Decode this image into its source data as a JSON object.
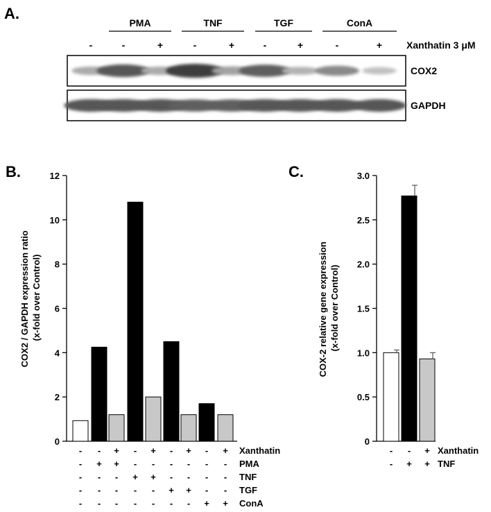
{
  "panel_a": {
    "label": "A.",
    "groups": [
      "PMA",
      "TNF",
      "TGF",
      "ConA"
    ],
    "treatment_label": "Xanthatin 3 μM",
    "treatment_signs": [
      "-",
      "-",
      "+",
      "-",
      "+",
      "-",
      "+",
      "-",
      "+"
    ],
    "blots": [
      {
        "name": "COX2",
        "intensities": [
          0.35,
          0.85,
          0.35,
          1.0,
          0.4,
          0.8,
          0.3,
          0.55,
          0.22
        ]
      },
      {
        "name": "GAPDH",
        "intensities": [
          0.85,
          0.85,
          0.85,
          0.8,
          0.8,
          0.85,
          0.85,
          0.85,
          0.85
        ]
      }
    ]
  },
  "chart_data": [
    {
      "panel_label": "B.",
      "type": "bar",
      "ylabel": [
        "COX2 / GAPDH expression ratio",
        "(x-fold over Control)"
      ],
      "ylim": [
        0,
        12
      ],
      "yticks": [
        "0",
        "2",
        "4",
        "6",
        "8",
        "10",
        "12"
      ],
      "values": [
        0.93,
        4.25,
        1.2,
        10.8,
        2.0,
        4.5,
        1.2,
        1.7,
        1.2
      ],
      "bar_colors": [
        "#ffffff",
        "#000000",
        "#c8c8c8",
        "#000000",
        "#c8c8c8",
        "#000000",
        "#c8c8c8",
        "#000000",
        "#c8c8c8"
      ],
      "condition_rows": [
        {
          "label": "Xanthatin",
          "signs": [
            "-",
            "-",
            "+",
            "-",
            "+",
            "-",
            "+",
            "-",
            "+"
          ]
        },
        {
          "label": "PMA",
          "signs": [
            "-",
            "+",
            "+",
            "-",
            "-",
            "-",
            "-",
            "-",
            "-"
          ]
        },
        {
          "label": "TNF",
          "signs": [
            "-",
            "-",
            "-",
            "+",
            "+",
            "-",
            "-",
            "-",
            "-"
          ]
        },
        {
          "label": "TGF",
          "signs": [
            "-",
            "-",
            "-",
            "-",
            "-",
            "+",
            "+",
            "-",
            "-"
          ]
        },
        {
          "label": "ConA",
          "signs": [
            "-",
            "-",
            "-",
            "-",
            "-",
            "-",
            "-",
            "+",
            "+"
          ]
        }
      ],
      "grid": false
    },
    {
      "panel_label": "C.",
      "type": "bar",
      "ylabel": [
        "COX-2 relative gene expression",
        "(x-fold over Control)"
      ],
      "ylim": [
        0,
        3.0
      ],
      "yticks": [
        "0",
        "0.5",
        "1.0",
        "1.5",
        "2.0",
        "2.5",
        "3.0"
      ],
      "values": [
        1.0,
        2.77,
        0.93
      ],
      "errors": [
        0.03,
        0.12,
        0.07
      ],
      "bar_colors": [
        "#ffffff",
        "#000000",
        "#c8c8c8"
      ],
      "condition_rows": [
        {
          "label": "Xanthatin",
          "signs": [
            "-",
            "-",
            "+"
          ]
        },
        {
          "label": "TNF",
          "signs": [
            "-",
            "+",
            "+"
          ]
        }
      ],
      "grid": false
    }
  ]
}
